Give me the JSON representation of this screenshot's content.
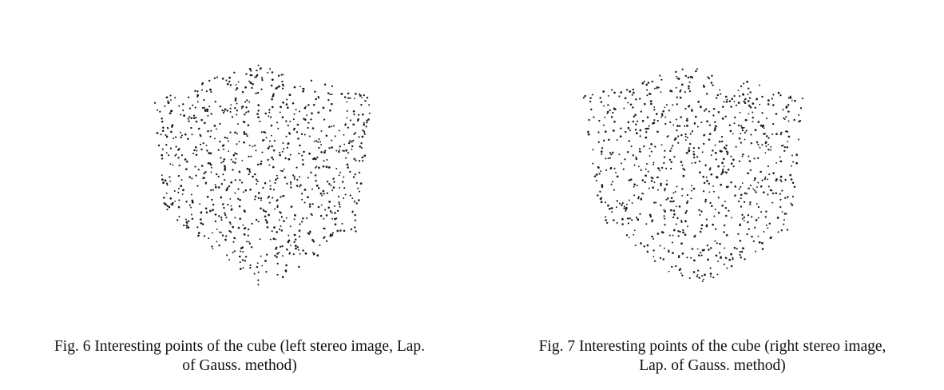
{
  "figures": [
    {
      "id": "fig6",
      "caption_line1": "Fig. 6 Interesting points of the cube (left stereo image, Lap.",
      "caption_line2": "of Gauss. method)",
      "image": "point-cloud-cube",
      "view": "left stereo image"
    },
    {
      "id": "fig7",
      "caption_line1": "Fig. 7 Interesting points of the cube (right stereo image,",
      "caption_line2": "Lap. of Gauss. method)",
      "image": "point-cloud-cube",
      "view": "right stereo image"
    }
  ],
  "colors": {
    "dot": "#1a1a1a",
    "background": "#ffffff"
  }
}
